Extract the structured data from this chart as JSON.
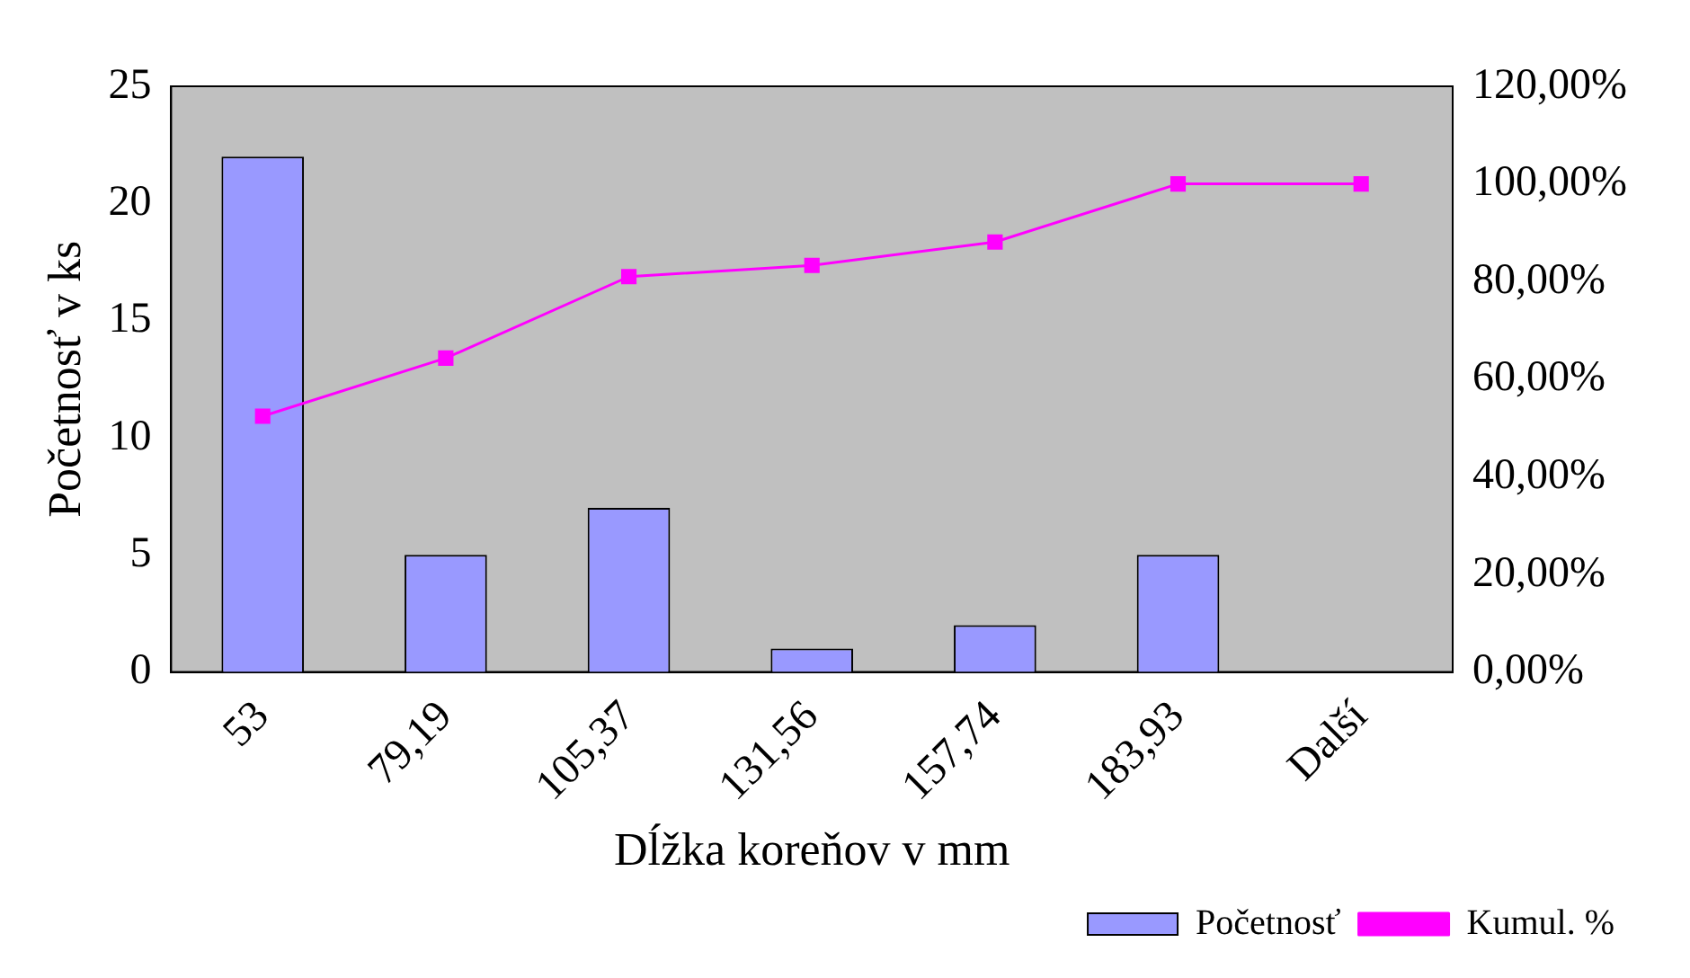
{
  "chart_data": {
    "type": "bar",
    "xlabel": "Dĺžka koreňov v mm",
    "ylabel": "Početnosť v ks",
    "categories": [
      "53",
      "79,19",
      "105,37",
      "131,56",
      "157,74",
      "183,93",
      "Další"
    ],
    "series": [
      {
        "name": "Početnosť",
        "color": "#9999ff",
        "values": [
          22,
          5,
          7,
          1,
          2,
          5,
          0
        ]
      },
      {
        "name": "Kumul. %",
        "type": "line",
        "axis": "y2",
        "color": "#ff00ff",
        "marker": "square",
        "values": [
          52.4,
          64.3,
          81,
          83.3,
          88.1,
          100,
          100
        ]
      }
    ],
    "ylim": [
      0,
      25
    ],
    "yticks": [
      0,
      5,
      10,
      15,
      20,
      25
    ],
    "y2lim": [
      0,
      120
    ],
    "y2ticks": [
      {
        "value": 0,
        "label": "0,00%"
      },
      {
        "value": 20,
        "label": "20,00%"
      },
      {
        "value": 40,
        "label": "40,00%"
      },
      {
        "value": 60,
        "label": "60,00%"
      },
      {
        "value": 80,
        "label": "80,00%"
      },
      {
        "value": 100,
        "label": "100,00%"
      },
      {
        "value": 120,
        "label": "120,00%"
      }
    ],
    "grid": false,
    "legend": "bottom right"
  }
}
